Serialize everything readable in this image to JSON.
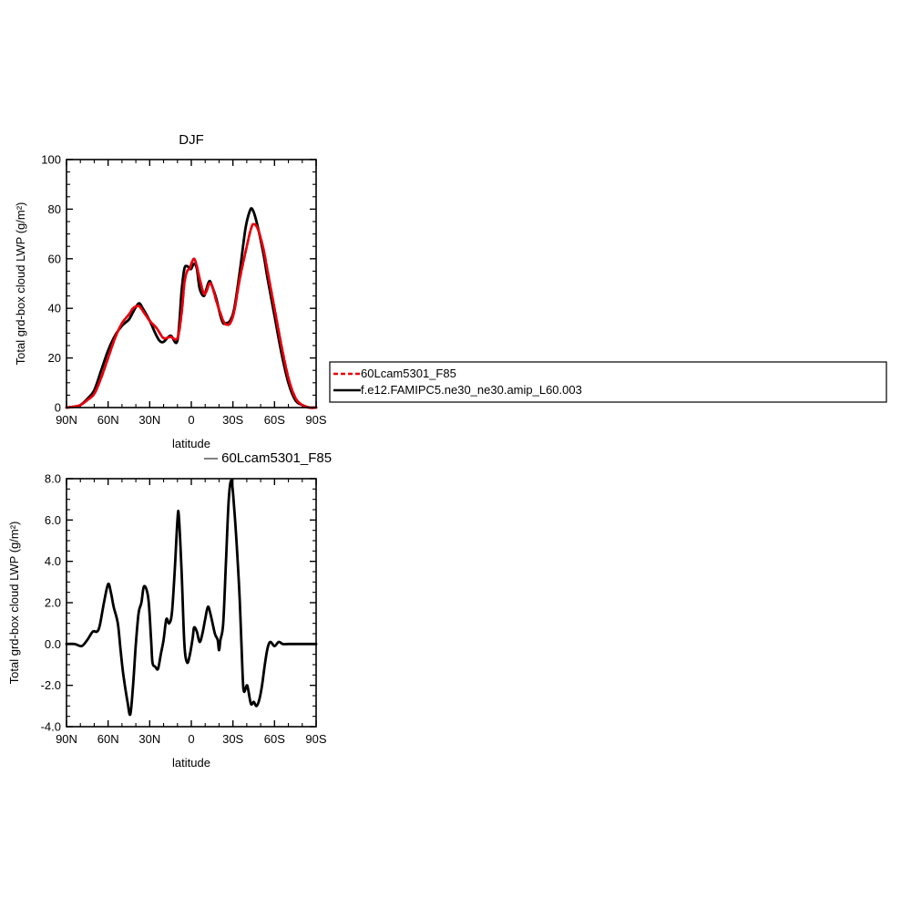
{
  "chart_data": [
    {
      "type": "line",
      "title": "DJF",
      "xlabel": "latitude",
      "ylabel": "Total grd-box cloud LWP (g/m²)",
      "xlim": [
        90,
        -90
      ],
      "ylim": [
        0,
        100
      ],
      "x_ticks": [
        90,
        60,
        30,
        0,
        -30,
        -60,
        -90
      ],
      "x_tick_labels": [
        "90N",
        "60N",
        "30N",
        "0",
        "30S",
        "60S",
        "90S"
      ],
      "y_ticks": [
        0,
        20,
        40,
        60,
        80,
        100
      ],
      "y_tick_labels": [
        "0",
        "20",
        "40",
        "60",
        "80",
        "100"
      ],
      "legend_position": "right, outside plot",
      "series": [
        {
          "name": "60Lcam5301_F85",
          "color": "#e8000b",
          "dash": "dashed",
          "points": [
            [
              90,
              0
            ],
            [
              85,
              0.3
            ],
            [
              80,
              1
            ],
            [
              75,
              3
            ],
            [
              70,
              5.5
            ],
            [
              65,
              12
            ],
            [
              60,
              20
            ],
            [
              55,
              28
            ],
            [
              50,
              34
            ],
            [
              45,
              37.5
            ],
            [
              42,
              40
            ],
            [
              38,
              41
            ],
            [
              35,
              39
            ],
            [
              30,
              35
            ],
            [
              25,
              32
            ],
            [
              20,
              28
            ],
            [
              15,
              28.5
            ],
            [
              10,
              28
            ],
            [
              7,
              38
            ],
            [
              5,
              50
            ],
            [
              3,
              55
            ],
            [
              1,
              56
            ],
            [
              0,
              58
            ],
            [
              -2,
              60
            ],
            [
              -4,
              57
            ],
            [
              -6,
              52
            ],
            [
              -9,
              46
            ],
            [
              -11,
              47
            ],
            [
              -13,
              50
            ],
            [
              -15,
              49
            ],
            [
              -18,
              43
            ],
            [
              -21,
              38
            ],
            [
              -23,
              35
            ],
            [
              -25,
              33.5
            ],
            [
              -28,
              34
            ],
            [
              -31,
              39
            ],
            [
              -35,
              52
            ],
            [
              -40,
              65
            ],
            [
              -43,
              72
            ],
            [
              -45,
              74
            ],
            [
              -48,
              72
            ],
            [
              -52,
              64
            ],
            [
              -55,
              55
            ],
            [
              -60,
              40
            ],
            [
              -65,
              25
            ],
            [
              -70,
              12
            ],
            [
              -75,
              4
            ],
            [
              -80,
              1
            ],
            [
              -85,
              0
            ],
            [
              -90,
              0
            ]
          ]
        },
        {
          "name": "f.e12.FAMIPC5.ne30_ne30.amip_L60.003",
          "color": "#000000",
          "dash": "solid",
          "points": [
            [
              90,
              0
            ],
            [
              85,
              0.3
            ],
            [
              80,
              1
            ],
            [
              75,
              3.5
            ],
            [
              70,
              7
            ],
            [
              65,
              15
            ],
            [
              60,
              23
            ],
            [
              55,
              29
            ],
            [
              50,
              33
            ],
            [
              45,
              35.5
            ],
            [
              42,
              38.5
            ],
            [
              38,
              42
            ],
            [
              35,
              40
            ],
            [
              30,
              35
            ],
            [
              26,
              30
            ],
            [
              23,
              27
            ],
            [
              20,
              26.5
            ],
            [
              15,
              29
            ],
            [
              10,
              27
            ],
            [
              7,
              47
            ],
            [
              5,
              56
            ],
            [
              3,
              57
            ],
            [
              1,
              56
            ],
            [
              0,
              56
            ],
            [
              -2,
              58
            ],
            [
              -4,
              56
            ],
            [
              -6,
              48
            ],
            [
              -9,
              45
            ],
            [
              -11,
              48
            ],
            [
              -13,
              51
            ],
            [
              -15,
              49
            ],
            [
              -18,
              44
            ],
            [
              -21,
              37
            ],
            [
              -23,
              34
            ],
            [
              -25,
              34
            ],
            [
              -28,
              35
            ],
            [
              -31,
              40
            ],
            [
              -35,
              55
            ],
            [
              -39,
              72
            ],
            [
              -42,
              79
            ],
            [
              -44,
              80
            ],
            [
              -47,
              75
            ],
            [
              -52,
              62
            ],
            [
              -55,
              52
            ],
            [
              -60,
              37
            ],
            [
              -65,
              22
            ],
            [
              -70,
              10
            ],
            [
              -75,
              3
            ],
            [
              -80,
              1
            ],
            [
              -85,
              0
            ],
            [
              -90,
              0
            ]
          ]
        }
      ]
    },
    {
      "type": "line",
      "title": "— 60Lcam5301_F85",
      "xlabel": "latitude",
      "ylabel": "Total grd-box cloud LWP (g/m²)",
      "xlim": [
        90,
        -90
      ],
      "ylim": [
        -4,
        8
      ],
      "x_ticks": [
        90,
        60,
        30,
        0,
        -30,
        -60,
        -90
      ],
      "x_tick_labels": [
        "90N",
        "60N",
        "30N",
        "0",
        "30S",
        "60S",
        "90S"
      ],
      "y_ticks": [
        -4,
        -2,
        0,
        2,
        4,
        6,
        8
      ],
      "y_tick_labels": [
        "-4.0",
        "-2.0",
        "0.0",
        "2.0",
        "4.0",
        "6.0",
        "8.0"
      ],
      "series": [
        {
          "color": "#000000",
          "dash": "solid",
          "points": [
            [
              90,
              0
            ],
            [
              84,
              0
            ],
            [
              79,
              -0.1
            ],
            [
              75,
              0.2
            ],
            [
              71,
              0.6
            ],
            [
              68,
              0.6
            ],
            [
              66,
              0.9
            ],
            [
              63,
              2
            ],
            [
              60,
              2.9
            ],
            [
              58,
              2.5
            ],
            [
              56,
              1.8
            ],
            [
              53,
              1
            ],
            [
              51,
              -0.3
            ],
            [
              49,
              -1.5
            ],
            [
              46,
              -2.8
            ],
            [
              44,
              -3.4
            ],
            [
              42,
              -2
            ],
            [
              40,
              0
            ],
            [
              38,
              1.5
            ],
            [
              36,
              2
            ],
            [
              34,
              2.8
            ],
            [
              31,
              2.2
            ],
            [
              29,
              0.2
            ],
            [
              28,
              -0.9
            ],
            [
              26,
              -1.1
            ],
            [
              24,
              -1.2
            ],
            [
              22,
              -0.5
            ],
            [
              20,
              0.2
            ],
            [
              18,
              1.2
            ],
            [
              16,
              1
            ],
            [
              14,
              1.5
            ],
            [
              12,
              3.5
            ],
            [
              10,
              6
            ],
            [
              9,
              6.2
            ],
            [
              7,
              3.5
            ],
            [
              5,
              0
            ],
            [
              3,
              -0.9
            ],
            [
              1,
              -0.5
            ],
            [
              -1,
              0.3
            ],
            [
              -2,
              0.8
            ],
            [
              -4,
              0.6
            ],
            [
              -6,
              0.1
            ],
            [
              -8,
              0.5
            ],
            [
              -10,
              1.2
            ],
            [
              -12,
              1.8
            ],
            [
              -14,
              1.4
            ],
            [
              -17,
              0.5
            ],
            [
              -19,
              0.2
            ],
            [
              -20,
              -0.3
            ],
            [
              -21,
              0.2
            ],
            [
              -23,
              1
            ],
            [
              -25,
              4
            ],
            [
              -27,
              7
            ],
            [
              -29,
              7.9
            ],
            [
              -31,
              6.5
            ],
            [
              -33,
              4.5
            ],
            [
              -35,
              2
            ],
            [
              -37,
              -1.5
            ],
            [
              -38,
              -2.3
            ],
            [
              -40,
              -2
            ],
            [
              -41,
              -2.2
            ],
            [
              -43,
              -2.9
            ],
            [
              -45,
              -2.8
            ],
            [
              -47,
              -3
            ],
            [
              -49,
              -2.7
            ],
            [
              -51,
              -2
            ],
            [
              -53,
              -1
            ],
            [
              -55,
              -0.2
            ],
            [
              -57,
              0.1
            ],
            [
              -60,
              -0.1
            ],
            [
              -63,
              0.1
            ],
            [
              -66,
              0
            ],
            [
              -70,
              0
            ],
            [
              -75,
              0
            ],
            [
              -80,
              0
            ],
            [
              -85,
              0
            ],
            [
              -90,
              0
            ]
          ]
        }
      ]
    }
  ]
}
